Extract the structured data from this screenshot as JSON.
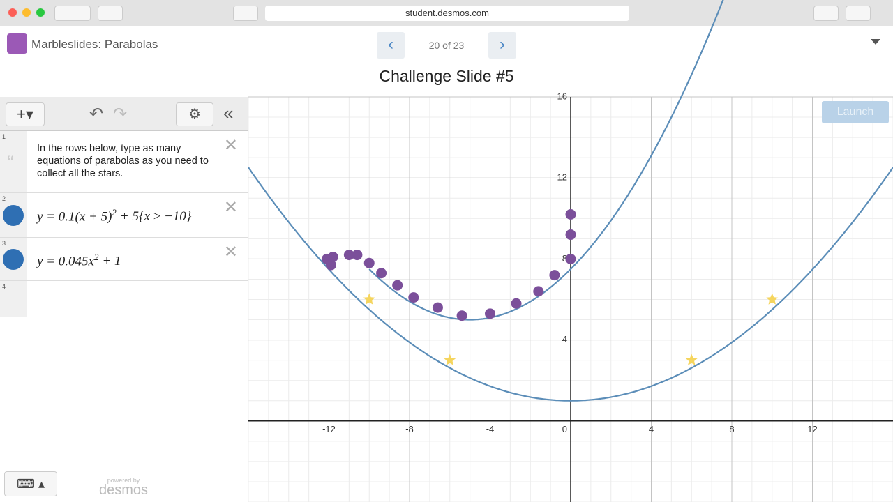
{
  "browser": {
    "url": "student.desmos.com"
  },
  "header": {
    "app_title": "Marbleslides: Parabolas",
    "slide_counter": "20 of 23",
    "slide_title": "Challenge Slide #5"
  },
  "expressions": [
    {
      "number": "1",
      "note": "In the rows below, type as many equations of parabolas as you need to collect all the stars."
    },
    {
      "number": "2",
      "base": "y = 0.1(x + 5)",
      "exponent": "2",
      "rest": "+ 5{x ≥ −10}"
    },
    {
      "number": "3",
      "base": "y = 0.045x",
      "exponent": "2",
      "rest": "+ 1"
    },
    {
      "number": "4"
    }
  ],
  "footer": {
    "powered": "powered by",
    "brand": "desmos"
  },
  "graph": {
    "launch": "Launch",
    "xlim": [
      -16,
      16
    ],
    "ylim": [
      -4,
      16
    ],
    "xticks": [
      -12,
      -8,
      -4,
      0,
      4,
      8,
      12
    ],
    "yticks": [
      4,
      8,
      12,
      16
    ],
    "minor_grid_step": 1,
    "curve_color": "#5b8db8",
    "star_color": "#f5d55e",
    "marble_color": "#7b4f9a",
    "curves": [
      {
        "a": 0.1,
        "h": -5,
        "k": 5,
        "xmin": -10
      },
      {
        "a": 0.045,
        "h": 0,
        "k": 1
      }
    ],
    "stars": {
      "x": [
        -10,
        -6,
        6,
        10
      ],
      "y": [
        6,
        3,
        3,
        6
      ]
    },
    "marbles": {
      "x": [
        -12.1,
        -11.9,
        -11.8,
        -11,
        -10.6,
        -10,
        -9.4,
        -8.6,
        -7.8,
        -6.6,
        -5.4,
        -4,
        -2.7,
        -1.6,
        -0.8,
        0,
        0,
        0
      ],
      "y": [
        8,
        7.7,
        8.1,
        8.2,
        8.2,
        7.8,
        7.3,
        6.7,
        6.1,
        5.6,
        5.2,
        5.3,
        5.8,
        6.4,
        7.2,
        8,
        9.2,
        10.2
      ]
    }
  }
}
